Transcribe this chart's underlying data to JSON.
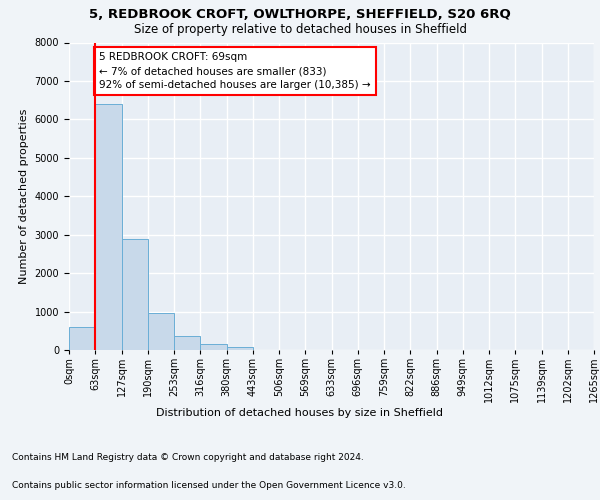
{
  "title1": "5, REDBROOK CROFT, OWLTHORPE, SHEFFIELD, S20 6RQ",
  "title2": "Size of property relative to detached houses in Sheffield",
  "xlabel": "Distribution of detached houses by size in Sheffield",
  "ylabel": "Number of detached properties",
  "footnote1": "Contains HM Land Registry data © Crown copyright and database right 2024.",
  "footnote2": "Contains public sector information licensed under the Open Government Licence v3.0.",
  "bin_labels": [
    "0sqm",
    "63sqm",
    "127sqm",
    "190sqm",
    "253sqm",
    "316sqm",
    "380sqm",
    "443sqm",
    "506sqm",
    "569sqm",
    "633sqm",
    "696sqm",
    "759sqm",
    "822sqm",
    "886sqm",
    "949sqm",
    "1012sqm",
    "1075sqm",
    "1139sqm",
    "1202sqm",
    "1265sqm"
  ],
  "bar_values": [
    600,
    6400,
    2900,
    975,
    360,
    150,
    75,
    0,
    0,
    0,
    0,
    0,
    0,
    0,
    0,
    0,
    0,
    0,
    0,
    0
  ],
  "bar_color": "#c8d9ea",
  "bar_edge_color": "#6aaed6",
  "highlight_line_color": "red",
  "annotation_text": "5 REDBROOK CROFT: 69sqm\n← 7% of detached houses are smaller (833)\n92% of semi-detached houses are larger (10,385) →",
  "annotation_box_color": "red",
  "ylim": [
    0,
    8000
  ],
  "yticks": [
    0,
    1000,
    2000,
    3000,
    4000,
    5000,
    6000,
    7000,
    8000
  ],
  "background_color": "#f0f4f8",
  "plot_bg_color": "#e8eef5",
  "grid_color": "white",
  "title1_fontsize": 9.5,
  "title2_fontsize": 8.5,
  "axis_label_fontsize": 8,
  "tick_fontsize": 7,
  "annotation_fontsize": 7.5,
  "footnote_fontsize": 6.5
}
